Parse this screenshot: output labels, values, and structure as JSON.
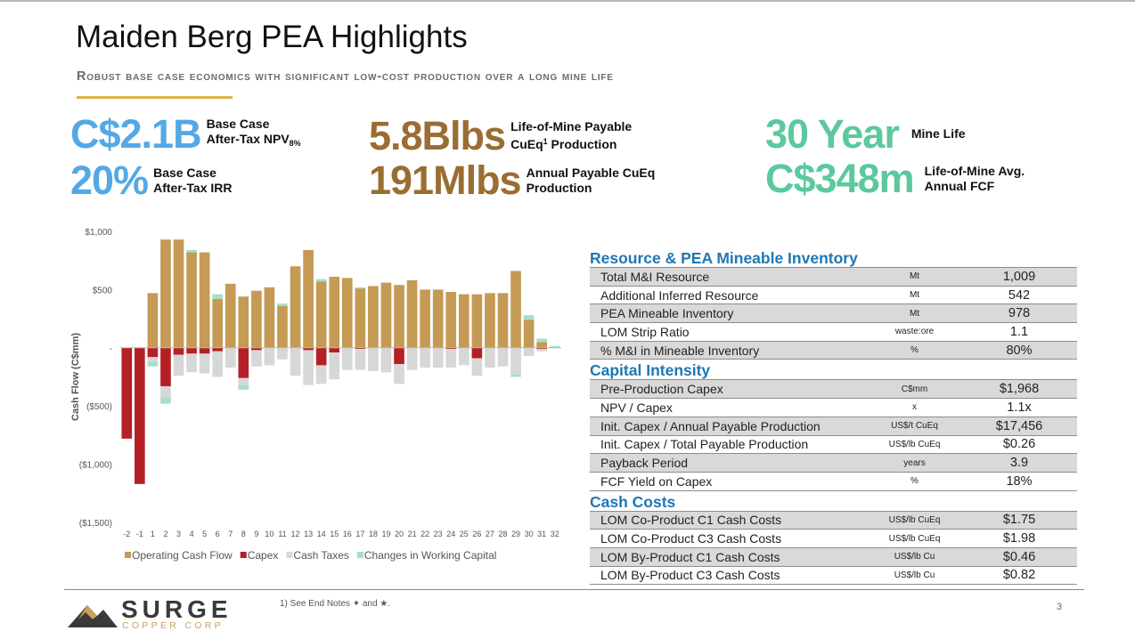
{
  "slide": {
    "title": "Maiden Berg PEA Highlights",
    "subtitle": "Robust base case economics with significant low-cost production over a long mine life"
  },
  "kpis": [
    {
      "value": "C$2.1B",
      "label1": "Base Case",
      "label2": "After-Tax NPV",
      "label2_sub": "8%",
      "color": "#54a8e5"
    },
    {
      "value": "20%",
      "label1": "Base Case",
      "label2": "After-Tax IRR",
      "color": "#54a8e5"
    },
    {
      "value": "5.8Blbs",
      "label1": "Life-of-Mine Payable",
      "label2_pre": "CuEq",
      "label2_sup": "1",
      "label2_post": " Production",
      "color": "#9a6d32"
    },
    {
      "value": "191Mlbs",
      "label1": "Annual Payable CuEq",
      "label2": "Production",
      "color": "#9a6d32"
    },
    {
      "value": "30 Year",
      "label1": "Mine Life",
      "color": "#5cc89e"
    },
    {
      "value": "C$348m",
      "label1": "Life-of-Mine Avg.",
      "label2": "Annual FCF",
      "color": "#5cc89e"
    }
  ],
  "chart_data": {
    "type": "bar",
    "stacked": true,
    "ylabel": "Cash Flow (C$mm)",
    "ylim": [
      -1500,
      1000
    ],
    "yticks": [
      1000,
      500,
      0,
      -500,
      -1000,
      -1500
    ],
    "ytick_labels": [
      "$1,000",
      "$500",
      "-",
      "($500)",
      "($1,000)",
      "($1,500)"
    ],
    "categories": [
      "-2",
      "-1",
      "1",
      "2",
      "3",
      "4",
      "5",
      "6",
      "7",
      "8",
      "9",
      "10",
      "11",
      "12",
      "13",
      "14",
      "15",
      "16",
      "17",
      "18",
      "19",
      "20",
      "21",
      "22",
      "23",
      "24",
      "25",
      "26",
      "27",
      "28",
      "29",
      "30",
      "31",
      "32"
    ],
    "series": [
      {
        "name": "Operating Cash Flow",
        "color": "#c49a54",
        "values": [
          0,
          0,
          470,
          930,
          930,
          820,
          820,
          420,
          550,
          440,
          490,
          520,
          360,
          700,
          840,
          570,
          610,
          600,
          510,
          530,
          560,
          540,
          580,
          500,
          500,
          480,
          460,
          460,
          470,
          470,
          660,
          240,
          50,
          5
        ]
      },
      {
        "name": "Capex",
        "color": "#b42025",
        "values": [
          -780,
          -1170,
          -80,
          -330,
          -60,
          -50,
          -50,
          -30,
          0,
          -260,
          -20,
          0,
          0,
          0,
          -20,
          -150,
          -40,
          0,
          -10,
          0,
          0,
          -140,
          0,
          0,
          0,
          -10,
          0,
          -90,
          0,
          0,
          0,
          0,
          -10,
          0
        ]
      },
      {
        "name": "Cash Taxes",
        "color": "#d7d7d7",
        "values": [
          0,
          0,
          -40,
          -100,
          -180,
          -160,
          -170,
          -220,
          -170,
          -60,
          -140,
          -150,
          -100,
          -240,
          -300,
          -160,
          -230,
          -190,
          -180,
          -200,
          -210,
          -170,
          -190,
          -170,
          -170,
          -160,
          -150,
          -150,
          -170,
          -160,
          -230,
          -70,
          -20,
          0
        ]
      },
      {
        "name": "Changes in Working Capital",
        "color": "#a5dfc8",
        "values": [
          0,
          0,
          -40,
          -50,
          0,
          20,
          0,
          40,
          0,
          -40,
          0,
          0,
          20,
          0,
          0,
          20,
          0,
          0,
          10,
          0,
          0,
          0,
          0,
          0,
          0,
          0,
          0,
          0,
          0,
          0,
          -20,
          40,
          30,
          10
        ]
      }
    ]
  },
  "table": {
    "sections": [
      {
        "title": "Resource & PEA Mineable Inventory",
        "rows": [
          {
            "label": "Total M&I Resource",
            "unit": "Mt",
            "value": "1,009"
          },
          {
            "label": "Additional Inferred Resource",
            "unit": "Mt",
            "value": "542"
          },
          {
            "label": "PEA Mineable Inventory",
            "unit": "Mt",
            "value": "978"
          },
          {
            "label": "LOM Strip Ratio",
            "unit": "waste:ore",
            "value": "1.1"
          },
          {
            "label": "% M&I in Mineable Inventory",
            "unit": "%",
            "value": "80%"
          }
        ]
      },
      {
        "title": "Capital Intensity",
        "rows": [
          {
            "label": "Pre-Production Capex",
            "unit": "C$mm",
            "value": "$1,968"
          },
          {
            "label": "NPV / Capex",
            "unit": "x",
            "value": "1.1x"
          },
          {
            "label": "Init. Capex / Annual Payable Production",
            "unit": "US$/t CuEq",
            "value": "$17,456"
          },
          {
            "label": "Init. Capex / Total Payable Production",
            "unit": "US$/lb CuEq",
            "value": "$0.26"
          },
          {
            "label": "Payback Period",
            "unit": "years",
            "value": "3.9"
          },
          {
            "label": "FCF Yield on Capex",
            "unit": "%",
            "value": "18%"
          }
        ]
      },
      {
        "title": "Cash Costs",
        "rows": [
          {
            "label": "LOM Co-Product C1 Cash Costs",
            "unit": "US$/lb CuEq",
            "value": "$1.75"
          },
          {
            "label": "LOM Co-Product C3 Cash Costs",
            "unit": "US$/lb CuEq",
            "value": "$1.98"
          },
          {
            "label": "LOM By-Product C1 Cash Costs",
            "unit": "US$/lb Cu",
            "value": "$0.46"
          },
          {
            "label": "LOM By-Product C3 Cash Costs",
            "unit": "US$/lb Cu",
            "value": "$0.82"
          }
        ]
      }
    ]
  },
  "footer": {
    "logo_word": "SURGE",
    "logo_sub": "COPPER CORP",
    "footnote": "1)   See End Notes ✦ and ★.",
    "page_number": "3"
  }
}
